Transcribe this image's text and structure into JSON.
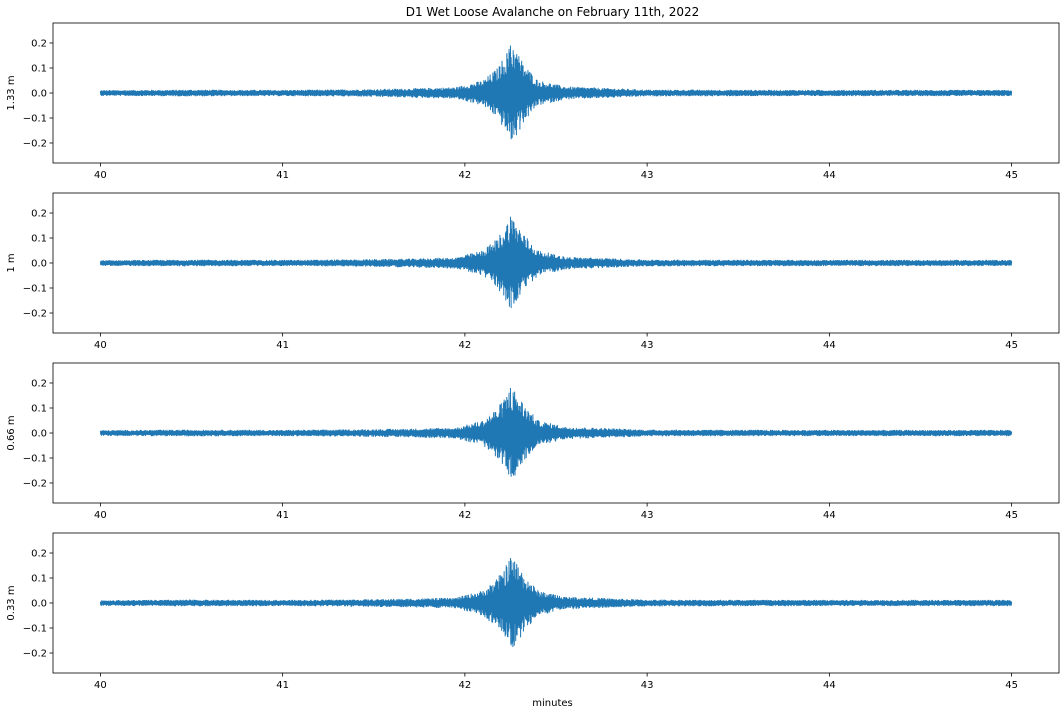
{
  "chart_data": {
    "type": "line",
    "title": "D1 Wet Loose Avalanche on February 11th, 2022",
    "xlabel": "minutes",
    "xlim": [
      39.74,
      45.26
    ],
    "xticks": [
      40,
      41,
      42,
      43,
      44,
      45
    ],
    "ylim": [
      -0.28,
      0.28
    ],
    "yticks": [
      -0.2,
      -0.1,
      0.0,
      0.1,
      0.2
    ],
    "ytick_labels": [
      "−0.2",
      "−0.1",
      "0.0",
      "0.1",
      "0.2"
    ],
    "grid": false,
    "series_color": "#1f77b4",
    "panels": [
      {
        "ylabel": "1.33 m",
        "baseline_amplitude": 0.01,
        "envelope": [
          {
            "x": 40.0,
            "y": 0.01
          },
          {
            "x": 40.5,
            "y": 0.012
          },
          {
            "x": 41.0,
            "y": 0.011
          },
          {
            "x": 41.4,
            "y": 0.013
          },
          {
            "x": 41.7,
            "y": 0.017
          },
          {
            "x": 41.95,
            "y": 0.022
          },
          {
            "x": 42.1,
            "y": 0.05
          },
          {
            "x": 42.18,
            "y": 0.1
          },
          {
            "x": 42.25,
            "y": 0.19
          },
          {
            "x": 42.28,
            "y": 0.18
          },
          {
            "x": 42.32,
            "y": 0.12
          },
          {
            "x": 42.4,
            "y": 0.05
          },
          {
            "x": 42.55,
            "y": 0.025
          },
          {
            "x": 43.0,
            "y": 0.012
          },
          {
            "x": 44.0,
            "y": 0.011
          },
          {
            "x": 45.0,
            "y": 0.011
          }
        ],
        "peak": {
          "x": 42.25,
          "max": 0.19,
          "min": -0.185
        }
      },
      {
        "ylabel": "1 m",
        "baseline_amplitude": 0.01,
        "envelope": [
          {
            "x": 40.0,
            "y": 0.01
          },
          {
            "x": 40.5,
            "y": 0.012
          },
          {
            "x": 41.0,
            "y": 0.011
          },
          {
            "x": 41.4,
            "y": 0.013
          },
          {
            "x": 41.7,
            "y": 0.016
          },
          {
            "x": 41.95,
            "y": 0.021
          },
          {
            "x": 42.1,
            "y": 0.05
          },
          {
            "x": 42.18,
            "y": 0.1
          },
          {
            "x": 42.25,
            "y": 0.185
          },
          {
            "x": 42.28,
            "y": 0.17
          },
          {
            "x": 42.32,
            "y": 0.12
          },
          {
            "x": 42.4,
            "y": 0.05
          },
          {
            "x": 42.55,
            "y": 0.024
          },
          {
            "x": 43.0,
            "y": 0.012
          },
          {
            "x": 44.0,
            "y": 0.011
          },
          {
            "x": 45.0,
            "y": 0.011
          }
        ],
        "peak": {
          "x": 42.25,
          "max": 0.185,
          "min": -0.18
        }
      },
      {
        "ylabel": "0.66 m",
        "baseline_amplitude": 0.01,
        "envelope": [
          {
            "x": 40.0,
            "y": 0.01
          },
          {
            "x": 40.5,
            "y": 0.012
          },
          {
            "x": 41.0,
            "y": 0.011
          },
          {
            "x": 41.4,
            "y": 0.013
          },
          {
            "x": 41.7,
            "y": 0.016
          },
          {
            "x": 41.95,
            "y": 0.02
          },
          {
            "x": 42.1,
            "y": 0.05
          },
          {
            "x": 42.18,
            "y": 0.1
          },
          {
            "x": 42.25,
            "y": 0.18
          },
          {
            "x": 42.28,
            "y": 0.17
          },
          {
            "x": 42.32,
            "y": 0.12
          },
          {
            "x": 42.4,
            "y": 0.05
          },
          {
            "x": 42.55,
            "y": 0.024
          },
          {
            "x": 43.0,
            "y": 0.012
          },
          {
            "x": 44.0,
            "y": 0.011
          },
          {
            "x": 45.0,
            "y": 0.011
          }
        ],
        "peak": {
          "x": 42.25,
          "max": 0.18,
          "min": -0.175
        }
      },
      {
        "ylabel": "0.33 m",
        "baseline_amplitude": 0.01,
        "envelope": [
          {
            "x": 40.0,
            "y": 0.01
          },
          {
            "x": 40.5,
            "y": 0.012
          },
          {
            "x": 41.0,
            "y": 0.011
          },
          {
            "x": 41.4,
            "y": 0.013
          },
          {
            "x": 41.7,
            "y": 0.016
          },
          {
            "x": 41.95,
            "y": 0.02
          },
          {
            "x": 42.1,
            "y": 0.05
          },
          {
            "x": 42.18,
            "y": 0.1
          },
          {
            "x": 42.25,
            "y": 0.18
          },
          {
            "x": 42.28,
            "y": 0.17
          },
          {
            "x": 42.32,
            "y": 0.12
          },
          {
            "x": 42.4,
            "y": 0.05
          },
          {
            "x": 42.55,
            "y": 0.024
          },
          {
            "x": 43.0,
            "y": 0.012
          },
          {
            "x": 44.0,
            "y": 0.011
          },
          {
            "x": 45.0,
            "y": 0.011
          }
        ],
        "peak": {
          "x": 42.25,
          "max": 0.18,
          "min": -0.17
        }
      }
    ]
  }
}
